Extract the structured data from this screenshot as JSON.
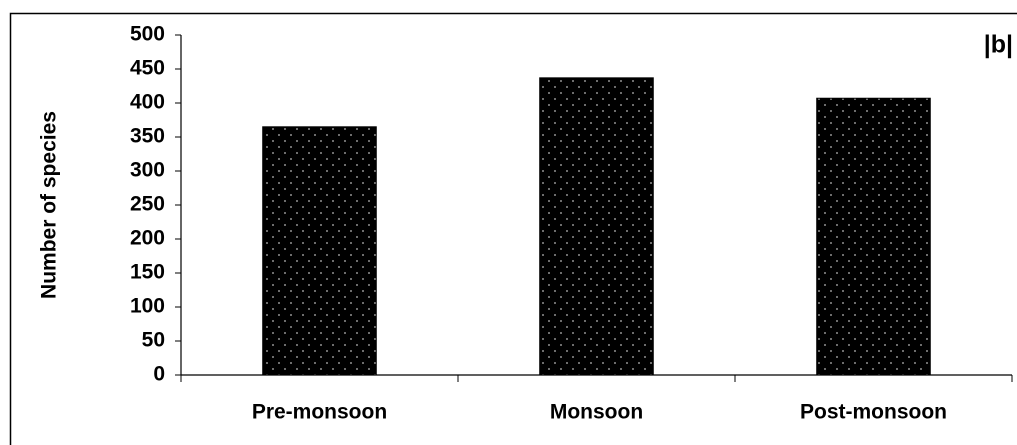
{
  "chart_data": {
    "type": "bar",
    "panel_label": "|b|",
    "y_label": "Number of species",
    "categories": [
      "Pre-monsoon",
      "Monsoon",
      "Post-monsoon"
    ],
    "values": [
      365,
      437,
      407
    ],
    "color": "#000000",
    "ylim": [
      0,
      500
    ],
    "yticks": [
      0,
      50,
      100,
      150,
      200,
      250,
      300,
      350,
      400,
      450,
      500
    ],
    "grid": false
  }
}
